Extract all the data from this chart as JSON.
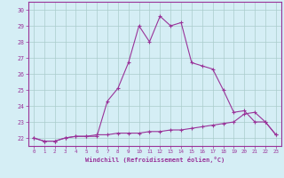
{
  "xlabel": "Windchill (Refroidissement éolien,°C)",
  "x_hours": [
    0,
    1,
    2,
    3,
    4,
    5,
    6,
    7,
    8,
    9,
    10,
    11,
    12,
    13,
    14,
    15,
    16,
    17,
    18,
    19,
    20,
    21,
    22,
    23
  ],
  "temp_curve": [
    22.0,
    21.8,
    21.8,
    22.0,
    22.1,
    22.1,
    22.1,
    24.3,
    25.1,
    26.7,
    29.0,
    28.0,
    29.6,
    29.0,
    29.2,
    26.7,
    26.5,
    26.3,
    25.0,
    23.6,
    23.7,
    23.0,
    23.0,
    22.2
  ],
  "windchill_curve": [
    22.0,
    21.8,
    21.8,
    22.0,
    22.1,
    22.1,
    22.2,
    22.2,
    22.3,
    22.3,
    22.3,
    22.4,
    22.4,
    22.5,
    22.5,
    22.6,
    22.7,
    22.8,
    22.9,
    23.0,
    23.5,
    23.6,
    23.0,
    22.2
  ],
  "line_color": "#993399",
  "bg_color": "#d5eef5",
  "grid_color": "#aacccc",
  "ylim": [
    21.5,
    30.5
  ],
  "xlim": [
    -0.5,
    23.5
  ],
  "yticks": [
    22,
    23,
    24,
    25,
    26,
    27,
    28,
    29,
    30
  ]
}
